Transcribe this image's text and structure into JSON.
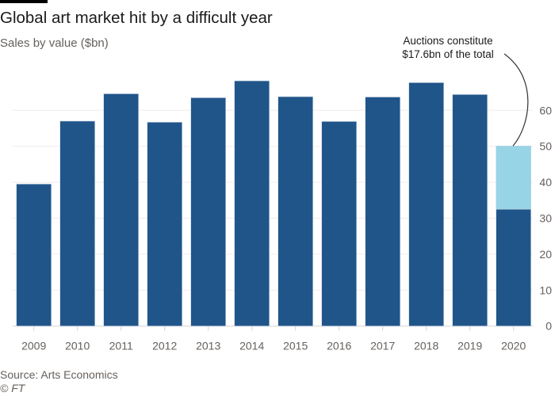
{
  "header": {
    "title": "Global art market hit by a difficult year",
    "subtitle": "Sales by value ($bn)"
  },
  "footer": {
    "source": "Source: Arts Economics",
    "credit": "© FT"
  },
  "chart_data": {
    "type": "bar",
    "title": "Global art market hit by a difficult year",
    "ylabel": "Sales by value ($bn)",
    "categories": [
      "2009",
      "2010",
      "2011",
      "2012",
      "2013",
      "2014",
      "2015",
      "2016",
      "2017",
      "2018",
      "2019",
      "2020"
    ],
    "series": [
      {
        "values": [
          39.5,
          57.0,
          64.6,
          56.7,
          63.5,
          68.2,
          63.8,
          56.9,
          63.7,
          67.7,
          64.4,
          32.5
        ],
        "color": "#20558a"
      },
      {
        "values": [
          0,
          0,
          0,
          0,
          0,
          0,
          0,
          0,
          0,
          0,
          0,
          17.6
        ],
        "color": "#96d4e6"
      }
    ],
    "totals": [
      39.5,
      57.0,
      64.6,
      56.7,
      63.5,
      68.2,
      63.8,
      56.9,
      63.7,
      67.7,
      64.4,
      50.1
    ],
    "ylim": [
      0,
      70
    ],
    "yticks": [
      0,
      10,
      20,
      30,
      40,
      50,
      60
    ],
    "y_axis_side": "right",
    "grid": true,
    "annotation": {
      "lines": [
        "Auctions constitute",
        "$17.6bn of the total"
      ],
      "target": "2020"
    }
  }
}
